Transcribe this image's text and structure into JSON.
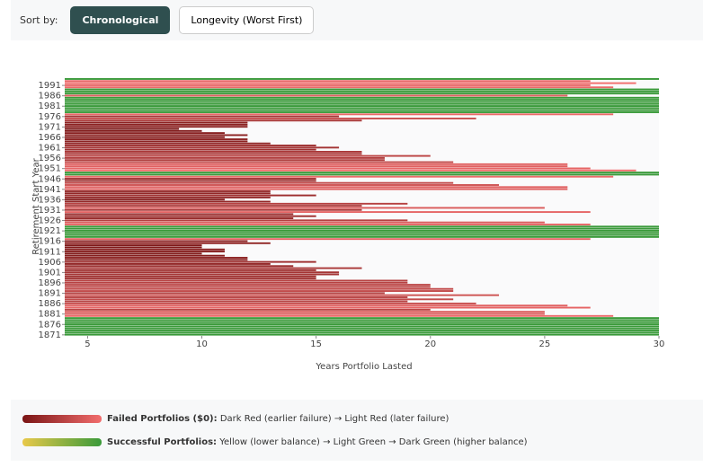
{
  "controls": {
    "label": "Sort by:",
    "buttons": [
      "Chronological",
      "Longevity (Worst First)"
    ]
  },
  "chart_data": {
    "type": "hbar",
    "x_label": "Years Portfolio Lasted",
    "y_label": "Retirement Start Year",
    "y": [
      1871,
      1872,
      1873,
      1874,
      1875,
      1876,
      1877,
      1878,
      1879,
      1880,
      1881,
      1882,
      1883,
      1884,
      1885,
      1886,
      1887,
      1888,
      1889,
      1890,
      1891,
      1892,
      1893,
      1894,
      1895,
      1896,
      1897,
      1898,
      1899,
      1900,
      1901,
      1902,
      1903,
      1904,
      1905,
      1906,
      1907,
      1908,
      1909,
      1910,
      1911,
      1912,
      1913,
      1914,
      1915,
      1916,
      1917,
      1918,
      1919,
      1920,
      1921,
      1922,
      1923,
      1924,
      1925,
      1926,
      1927,
      1928,
      1929,
      1930,
      1931,
      1932,
      1933,
      1934,
      1935,
      1936,
      1937,
      1938,
      1939,
      1940,
      1941,
      1942,
      1943,
      1944,
      1945,
      1946,
      1947,
      1948,
      1949,
      1950,
      1951,
      1952,
      1953,
      1954,
      1955,
      1956,
      1957,
      1958,
      1959,
      1960,
      1961,
      1962,
      1963,
      1964,
      1965,
      1966,
      1967,
      1968,
      1969,
      1970,
      1971,
      1972,
      1973,
      1974,
      1975,
      1976,
      1977,
      1978,
      1979,
      1980,
      1981,
      1982,
      1983,
      1984,
      1985,
      1986,
      1987,
      1988,
      1989,
      1990,
      1991,
      1992,
      1993,
      1994
    ],
    "values": [
      30,
      30,
      30,
      30,
      30,
      30,
      30,
      30,
      30,
      28,
      25,
      25,
      20,
      27,
      26,
      22,
      19,
      21,
      19,
      23,
      18,
      21,
      21,
      20,
      20,
      19,
      19,
      15,
      15,
      16,
      16,
      15,
      17,
      14,
      13,
      15,
      12,
      12,
      11,
      10,
      11,
      11,
      10,
      10,
      13,
      12,
      27,
      30,
      30,
      30,
      30,
      30,
      30,
      27,
      25,
      19,
      14,
      15,
      14,
      27,
      17,
      25,
      17,
      19,
      13,
      11,
      13,
      15,
      13,
      13,
      26,
      26,
      23,
      21,
      15,
      15,
      28,
      30,
      30,
      29,
      27,
      26,
      26,
      21,
      18,
      18,
      20,
      17,
      17,
      15,
      16,
      15,
      13,
      12,
      12,
      11,
      12,
      11,
      10,
      9,
      12,
      12,
      12,
      17,
      22,
      16,
      28,
      30,
      30,
      30,
      30,
      30,
      30,
      30,
      30,
      26,
      30,
      30,
      30,
      28,
      27,
      29,
      27,
      30
    ],
    "xlim": [
      4,
      30
    ],
    "xticks": [
      5,
      10,
      15,
      20,
      25,
      30
    ],
    "ylim": [
      1870.5,
      1994.5
    ],
    "yticks": [
      1871,
      1876,
      1881,
      1886,
      1891,
      1896,
      1901,
      1906,
      1911,
      1916,
      1921,
      1926,
      1931,
      1936,
      1941,
      1946,
      1951,
      1956,
      1961,
      1966,
      1971,
      1976,
      1981,
      1986,
      1991
    ],
    "fail_colors": [
      "#7a1515",
      "#f26d6d"
    ],
    "success_colors": [
      "#e9c94a",
      "#3a9a3a"
    ]
  },
  "legend": [
    {
      "title": "Failed Portfolios ($0):",
      "text": "Dark Red (earlier failure) → Light Red (later failure)"
    },
    {
      "title": "Successful Portfolios:",
      "text": "Yellow (lower balance) → Light Green → Dark Green (higher balance)"
    }
  ]
}
